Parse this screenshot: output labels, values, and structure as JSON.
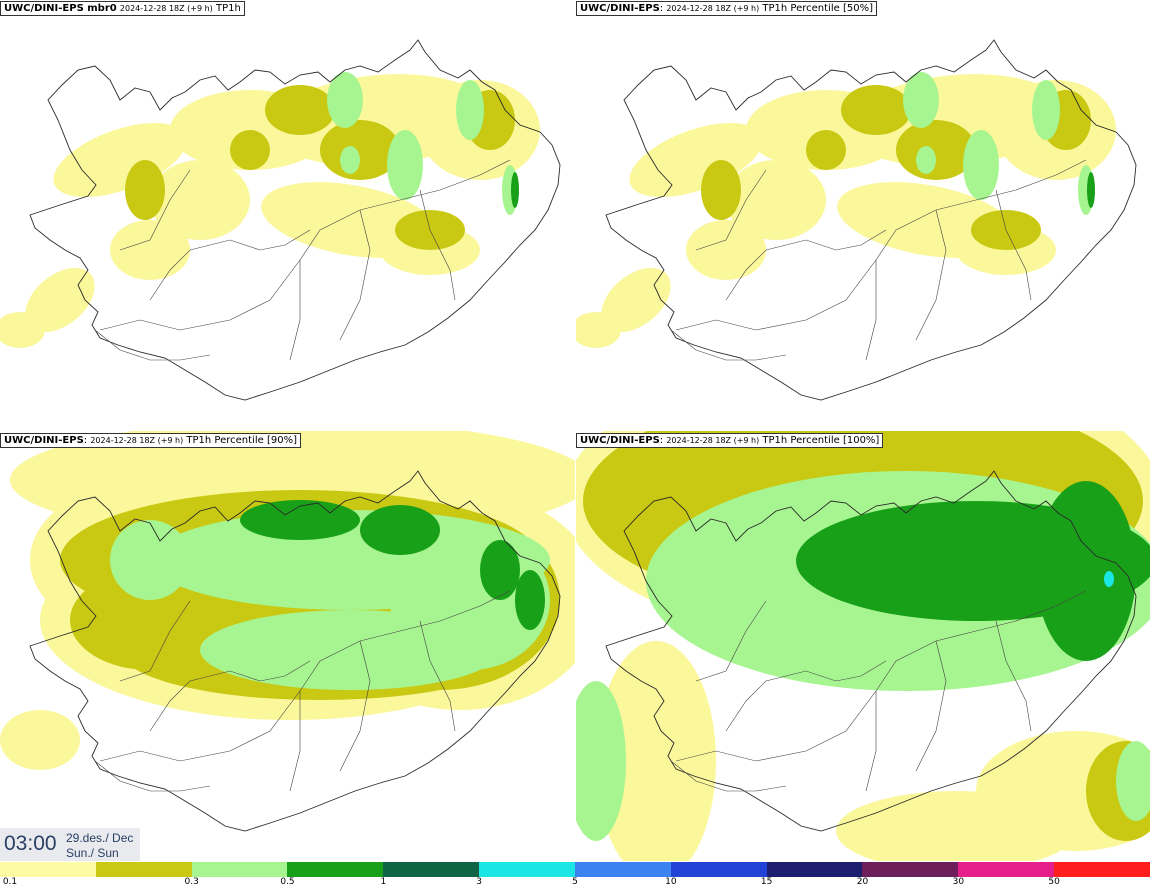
{
  "panels": [
    {
      "id": "tl",
      "model": "UWC/DINI-EPS",
      "suffix": " mbr0",
      "run": "2024-12-28 18Z (+9 h)",
      "field": "TP1h",
      "level": 1
    },
    {
      "id": "tr",
      "model": "UWC/DINI-EPS",
      "suffix": ":",
      "run": "2024-12-28 18Z (+9 h)",
      "field": "TP1h Percentile [50%]",
      "level": 1
    },
    {
      "id": "bl",
      "model": "UWC/DINI-EPS",
      "suffix": ":",
      "run": "2024-12-28 18Z (+9 h)",
      "field": "TP1h Percentile [90%]",
      "level": 2
    },
    {
      "id": "br",
      "model": "UWC/DINI-EPS",
      "suffix": ":",
      "run": "2024-12-28 18Z (+9 h)",
      "field": "TP1h Percentile [100%]",
      "level": 3
    }
  ],
  "valid_time": {
    "time": "03:00",
    "date_line1": "29.des./ Dec",
    "date_line2": "Sun./ Sun"
  },
  "colorbar": {
    "colors": [
      "#fdfba4",
      "#c9c812",
      "#a7f590",
      "#19a019",
      "#0f6445",
      "#1be6e6",
      "#3c82f0",
      "#2343d6",
      "#1e1e6e",
      "#6e1e5a",
      "#e61e8c",
      "#ff1e1e"
    ],
    "labels": [
      "0.1",
      "0.3",
      "0.5",
      "1",
      "3",
      "5",
      "10",
      "15",
      "20",
      "30",
      "50"
    ]
  },
  "palette": {
    "yellow": "#fbf79b",
    "olive": "#c9c812",
    "lightgreen": "#a7f590",
    "green": "#19a019",
    "darkgreen": "#0f6445",
    "cyan": "#1be6e6",
    "coast": "#2a2a2a"
  }
}
